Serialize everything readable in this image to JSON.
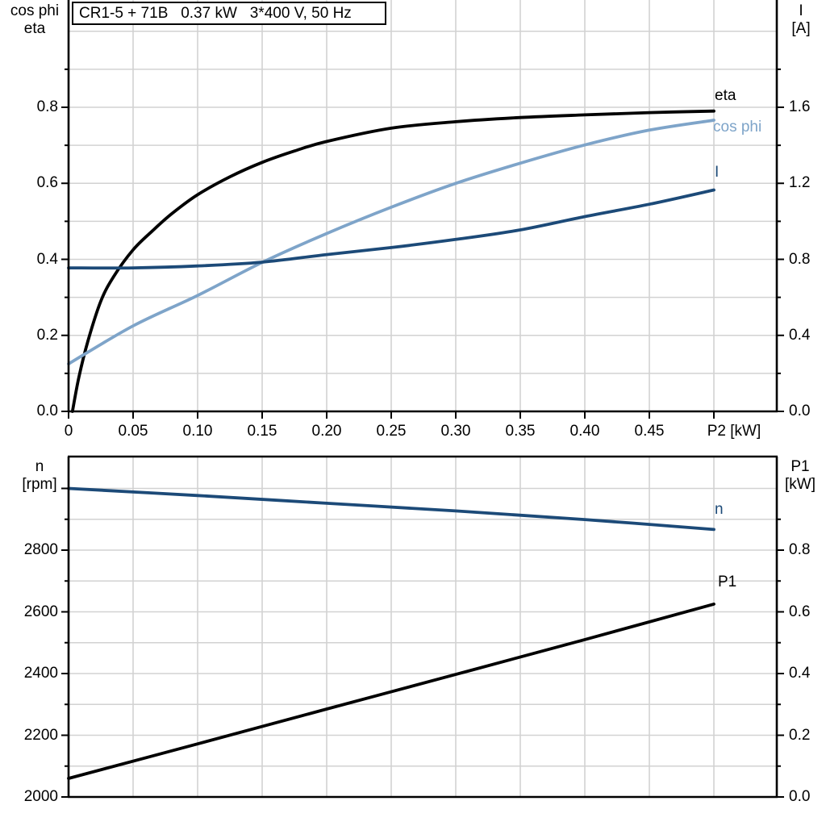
{
  "colors": {
    "black": "#000000",
    "dark_blue": "#1c4a78",
    "light_blue": "#7ea4c9",
    "grid": "#d2d2d2",
    "background": "#ffffff"
  },
  "title_box": {
    "text": "CR1-5 + 71B   0.37 kW   3*400 V, 50 Hz"
  },
  "top_chart": {
    "left_axis_label_line1": "cos phi",
    "left_axis_label_line2": "eta",
    "right_axis_label_line1": "I",
    "right_axis_label_line2": "[A]",
    "x_axis_label": "P2 [kW]",
    "curve_labels": {
      "eta": "eta",
      "cos_phi": "cos phi",
      "current": "I"
    }
  },
  "bottom_chart": {
    "left_axis_label_line1": "n",
    "left_axis_label_line2": "[rpm]",
    "right_axis_label_line1": "P1",
    "right_axis_label_line2": "[kW]",
    "curve_labels": {
      "n": "n",
      "p1": "P1"
    }
  },
  "chart_data": [
    {
      "type": "line",
      "title": "CR1-5 + 71B   0.37 kW   3*400 V, 50 Hz",
      "xlabel": "P2 [kW]",
      "ylabel_left": "cos phi / eta",
      "ylabel_right": "I [A]",
      "xlim": [
        0,
        0.549
      ],
      "ylim_left": [
        0,
        1.08
      ],
      "ylim_right": [
        0,
        2.16
      ],
      "grid": true,
      "x_gridlines": [
        0.05,
        0.1,
        0.15,
        0.2,
        0.25,
        0.3,
        0.35,
        0.4,
        0.45,
        0.5
      ],
      "y_gridlines_left": [
        0.1,
        0.2,
        0.3,
        0.4,
        0.5,
        0.6,
        0.7,
        0.8,
        0.9,
        1.0
      ],
      "x_ticks": [
        {
          "v": 0,
          "label": "0"
        },
        {
          "v": 0.05,
          "label": "0.05"
        },
        {
          "v": 0.1,
          "label": "0.10"
        },
        {
          "v": 0.15,
          "label": "0.15"
        },
        {
          "v": 0.2,
          "label": "0.20"
        },
        {
          "v": 0.25,
          "label": "0.25"
        },
        {
          "v": 0.3,
          "label": "0.30"
        },
        {
          "v": 0.35,
          "label": "0.35"
        },
        {
          "v": 0.4,
          "label": "0.40"
        },
        {
          "v": 0.45,
          "label": "0.45"
        },
        {
          "v": 0.5,
          "label": ""
        }
      ],
      "left_ticks_major": [
        {
          "v": 0.0,
          "label": "0.0"
        },
        {
          "v": 0.2,
          "label": "0.2"
        },
        {
          "v": 0.4,
          "label": "0.4"
        },
        {
          "v": 0.6,
          "label": "0.6"
        },
        {
          "v": 0.8,
          "label": "0.8"
        }
      ],
      "left_ticks_minor": [
        0.1,
        0.3,
        0.5,
        0.7,
        0.9
      ],
      "right_ticks_major": [
        {
          "v": 0.0,
          "label": "0.0"
        },
        {
          "v": 0.4,
          "label": "0.4"
        },
        {
          "v": 0.8,
          "label": "0.8"
        },
        {
          "v": 1.2,
          "label": "1.2"
        },
        {
          "v": 1.6,
          "label": "1.6"
        }
      ],
      "right_ticks_minor": [
        0.2,
        0.6,
        1.0,
        1.4,
        1.8
      ],
      "series": [
        {
          "name": "eta",
          "color_key": "black",
          "axis": "left",
          "points": [
            [
              0.003,
              0
            ],
            [
              0.008,
              0.09
            ],
            [
              0.015,
              0.185
            ],
            [
              0.025,
              0.29
            ],
            [
              0.035,
              0.355
            ],
            [
              0.05,
              0.425
            ],
            [
              0.065,
              0.475
            ],
            [
              0.08,
              0.52
            ],
            [
              0.1,
              0.57
            ],
            [
              0.125,
              0.617
            ],
            [
              0.15,
              0.655
            ],
            [
              0.175,
              0.685
            ],
            [
              0.2,
              0.71
            ],
            [
              0.25,
              0.745
            ],
            [
              0.3,
              0.762
            ],
            [
              0.35,
              0.773
            ],
            [
              0.4,
              0.78
            ],
            [
              0.45,
              0.786
            ],
            [
              0.5,
              0.79
            ]
          ]
        },
        {
          "name": "cos phi",
          "color_key": "light_blue",
          "axis": "left",
          "points": [
            [
              0,
              0.125
            ],
            [
              0.05,
              0.225
            ],
            [
              0.1,
              0.305
            ],
            [
              0.15,
              0.392
            ],
            [
              0.2,
              0.468
            ],
            [
              0.25,
              0.537
            ],
            [
              0.3,
              0.6
            ],
            [
              0.35,
              0.653
            ],
            [
              0.4,
              0.701
            ],
            [
              0.45,
              0.74
            ],
            [
              0.5,
              0.766
            ]
          ]
        },
        {
          "name": "I",
          "color_key": "dark_blue",
          "axis": "right",
          "points": [
            [
              0,
              0.755
            ],
            [
              0.05,
              0.755
            ],
            [
              0.1,
              0.765
            ],
            [
              0.15,
              0.785
            ],
            [
              0.2,
              0.825
            ],
            [
              0.25,
              0.862
            ],
            [
              0.3,
              0.905
            ],
            [
              0.35,
              0.955
            ],
            [
              0.4,
              1.025
            ],
            [
              0.45,
              1.09
            ],
            [
              0.5,
              1.165
            ]
          ]
        }
      ]
    },
    {
      "type": "line",
      "title": "",
      "xlabel": "",
      "ylabel_left": "n [rpm]",
      "ylabel_right": "P1 [kW]",
      "xlim": [
        0,
        0.549
      ],
      "ylim_left": [
        2000,
        3095
      ],
      "ylim_right": [
        0,
        1.095
      ],
      "grid": true,
      "x_gridlines": [
        0.05,
        0.1,
        0.15,
        0.2,
        0.25,
        0.3,
        0.35,
        0.4,
        0.45,
        0.5
      ],
      "y_gridlines_left": [
        2100,
        2200,
        2300,
        2400,
        2500,
        2600,
        2700,
        2800,
        2900,
        3000
      ],
      "x_ticks": [],
      "left_ticks_major": [
        {
          "v": 2000,
          "label": "2000"
        },
        {
          "v": 2200,
          "label": "2200"
        },
        {
          "v": 2400,
          "label": "2400"
        },
        {
          "v": 2600,
          "label": "2600"
        },
        {
          "v": 2800,
          "label": "2800"
        },
        {
          "v": 3000,
          "label": ""
        }
      ],
      "left_ticks_minor": [
        2100,
        2300,
        2500,
        2700,
        2900
      ],
      "right_ticks_major": [
        {
          "v": 0.0,
          "label": "0.0"
        },
        {
          "v": 0.2,
          "label": "0.2"
        },
        {
          "v": 0.4,
          "label": "0.4"
        },
        {
          "v": 0.6,
          "label": "0.6"
        },
        {
          "v": 0.8,
          "label": "0.8"
        }
      ],
      "right_ticks_minor": [
        0.1,
        0.3,
        0.5,
        0.7,
        0.9
      ],
      "series": [
        {
          "name": "n",
          "color_key": "dark_blue",
          "axis": "left",
          "points": [
            [
              0,
              3000
            ],
            [
              0.1,
              2977
            ],
            [
              0.2,
              2952
            ],
            [
              0.3,
              2927
            ],
            [
              0.4,
              2899
            ],
            [
              0.5,
              2867
            ]
          ]
        },
        {
          "name": "P1",
          "color_key": "black",
          "axis": "right",
          "points": [
            [
              0,
              0.06
            ],
            [
              0.1,
              0.172
            ],
            [
              0.2,
              0.285
            ],
            [
              0.3,
              0.397
            ],
            [
              0.4,
              0.51
            ],
            [
              0.5,
              0.625
            ]
          ]
        }
      ]
    }
  ]
}
